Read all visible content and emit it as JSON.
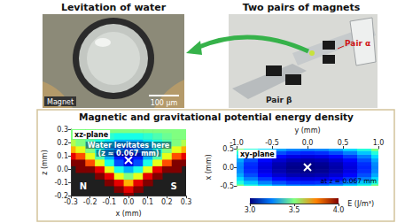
{
  "photos": [
    {
      "title": "Levitation of water",
      "label": "Magnet",
      "scale_bar": "100 μm"
    },
    {
      "title": "Two pairs of magnets",
      "labels": [
        "Pair α",
        "Pair β"
      ]
    }
  ],
  "energy_panel": {
    "title": "Magnetic and gravitational potential energy density",
    "colorbar": {
      "label": "E (J/m³)",
      "range": [
        3,
        4
      ],
      "ticks": [
        {
          "value": 3,
          "label": "3.0"
        },
        3.5,
        {
          "value": 4,
          "label": "4.0"
        }
      ]
    }
  },
  "chart_data": [
    {
      "type": "heatmap",
      "title": "xz-plane",
      "annotation": [
        "Water levitates here",
        "(z ≈ 0.067 mm)"
      ],
      "magnet_labels": [
        "N",
        "S"
      ],
      "xlabel": "x (mm)",
      "ylabel": "z (mm)",
      "xlim": [
        -0.3,
        0.3
      ],
      "xticks": [
        -0.3,
        -0.2,
        -0.1,
        {
          "value": 0,
          "label": "0.0"
        },
        0.1,
        0.2,
        0.3
      ],
      "ylim": [
        -0.2,
        0.3
      ],
      "yticks": [
        -0.2,
        -0.1,
        {
          "value": 0,
          "label": "0.0"
        },
        0.1,
        0.2,
        0.3
      ],
      "x": [
        -0.3,
        -0.25,
        -0.2,
        -0.15,
        -0.1,
        -0.05,
        0,
        0.05,
        0.1,
        0.15,
        0.2,
        0.25,
        0.3
      ],
      "y": [
        -0.2,
        -0.15,
        -0.1,
        -0.05,
        0,
        0.05,
        0.1,
        0.15,
        0.2,
        0.25,
        0.3
      ],
      "cells": [
        [
          null,
          null,
          null,
          null,
          null,
          null,
          4.0,
          null,
          null,
          null,
          null,
          null,
          null
        ],
        [
          null,
          null,
          null,
          null,
          null,
          4.0,
          3.9,
          4.0,
          null,
          null,
          null,
          null,
          null
        ],
        [
          null,
          null,
          null,
          null,
          4.0,
          3.9,
          3.7,
          3.9,
          4.0,
          null,
          null,
          null,
          null
        ],
        [
          null,
          null,
          null,
          4.0,
          3.9,
          3.6,
          3.5,
          3.6,
          3.9,
          4.0,
          null,
          null,
          null
        ],
        [
          null,
          4.0,
          4.0,
          3.9,
          3.6,
          3.4,
          3.3,
          3.4,
          3.6,
          3.9,
          4.0,
          4.0,
          null
        ],
        [
          4.0,
          4.0,
          3.8,
          3.6,
          3.4,
          3.2,
          3.1,
          3.2,
          3.4,
          3.6,
          3.8,
          4.0,
          4.0
        ],
        [
          3.9,
          3.8,
          3.6,
          3.45,
          3.3,
          3.15,
          3.1,
          3.15,
          3.3,
          3.45,
          3.6,
          3.8,
          3.9
        ],
        [
          3.7,
          3.6,
          3.5,
          3.4,
          3.3,
          3.25,
          3.2,
          3.25,
          3.3,
          3.4,
          3.5,
          3.6,
          3.7
        ],
        [
          3.55,
          3.5,
          3.45,
          3.4,
          3.35,
          3.3,
          3.3,
          3.3,
          3.35,
          3.4,
          3.45,
          3.5,
          3.55
        ],
        [
          3.5,
          3.5,
          3.48,
          3.45,
          3.42,
          3.4,
          3.4,
          3.4,
          3.42,
          3.45,
          3.48,
          3.5,
          3.5
        ],
        [
          3.5,
          3.5,
          3.5,
          3.5,
          3.5,
          3.5,
          3.5,
          3.5,
          3.5,
          3.5,
          3.5,
          3.5,
          3.5
        ]
      ],
      "point": {
        "x": 0,
        "y": 0.067
      },
      "marker": "x"
    },
    {
      "type": "heatmap",
      "title": "xy-plane",
      "annotation": [
        "at z = 0.067 mm"
      ],
      "xlabel": "y (mm)",
      "ylabel": "x (mm)",
      "xlim": [
        -1,
        1
      ],
      "xticks": [
        {
          "value": -1,
          "label": "-1.0"
        },
        -0.5,
        {
          "value": 0,
          "label": "0.0"
        },
        0.5,
        {
          "value": 1,
          "label": "1.0"
        }
      ],
      "ylim": [
        -0.5,
        0.5
      ],
      "yticks": [
        -0.5,
        {
          "value": 0,
          "label": "0.0"
        },
        0.5
      ],
      "x": [
        -1,
        -0.8,
        -0.6,
        -0.4,
        -0.2,
        0,
        0.2,
        0.4,
        0.6,
        0.8,
        1
      ],
      "y": [
        -0.5,
        -0.4,
        -0.3,
        -0.2,
        -0.1,
        0,
        0.1,
        0.2,
        0.3,
        0.4,
        0.5
      ],
      "cells": [
        [
          3.5,
          3.41,
          3.34,
          3.29,
          3.26,
          3.25,
          3.26,
          3.29,
          3.34,
          3.41,
          3.5
        ],
        [
          3.41,
          3.32,
          3.25,
          3.2,
          3.17,
          3.16,
          3.17,
          3.2,
          3.25,
          3.32,
          3.41
        ],
        [
          3.34,
          3.25,
          3.18,
          3.13,
          3.1,
          3.09,
          3.1,
          3.13,
          3.18,
          3.25,
          3.34
        ],
        [
          3.29,
          3.2,
          3.13,
          3.08,
          3.05,
          3.04,
          3.05,
          3.08,
          3.13,
          3.2,
          3.29
        ],
        [
          3.26,
          3.17,
          3.1,
          3.05,
          3.02,
          3.01,
          3.02,
          3.05,
          3.1,
          3.17,
          3.26
        ],
        [
          3.25,
          3.16,
          3.09,
          3.04,
          3.01,
          3.0,
          3.01,
          3.04,
          3.09,
          3.16,
          3.25
        ],
        [
          3.26,
          3.17,
          3.1,
          3.05,
          3.02,
          3.01,
          3.02,
          3.05,
          3.1,
          3.17,
          3.26
        ],
        [
          3.29,
          3.2,
          3.13,
          3.08,
          3.05,
          3.04,
          3.05,
          3.08,
          3.13,
          3.2,
          3.29
        ],
        [
          3.34,
          3.25,
          3.18,
          3.13,
          3.1,
          3.09,
          3.1,
          3.13,
          3.18,
          3.25,
          3.34
        ],
        [
          3.41,
          3.32,
          3.25,
          3.2,
          3.17,
          3.16,
          3.17,
          3.2,
          3.25,
          3.32,
          3.41
        ],
        [
          3.5,
          3.41,
          3.34,
          3.29,
          3.26,
          3.25,
          3.26,
          3.29,
          3.34,
          3.41,
          3.5
        ]
      ],
      "point": {
        "x": 0,
        "y": 0
      },
      "marker": "x"
    }
  ]
}
